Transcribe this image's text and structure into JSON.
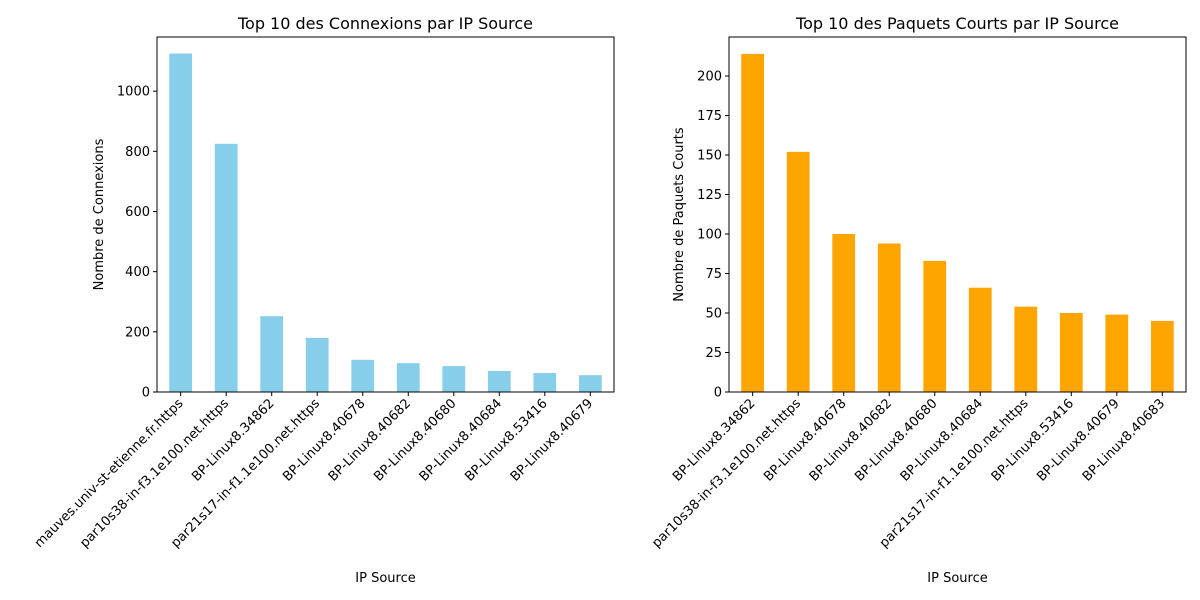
{
  "chart_data": [
    {
      "type": "bar",
      "title": "Top 10 des Connexions par IP Source",
      "xlabel": "IP Source",
      "ylabel": "Nombre de Connexions",
      "categories": [
        "mauves.univ-st-etienne.fr.https",
        "par10s38-in-f3.1e100.net.https",
        "BP-Linux8.34862",
        "par21s17-in-f1.1e100.net.https",
        "BP-Linux8.40678",
        "BP-Linux8.40682",
        "BP-Linux8.40680",
        "BP-Linux8.40684",
        "BP-Linux8.53416",
        "BP-Linux8.40679"
      ],
      "values": [
        1125,
        825,
        252,
        180,
        107,
        96,
        86,
        70,
        63,
        56
      ],
      "ylim": [
        0,
        1180
      ],
      "yticks": [
        0,
        200,
        400,
        600,
        800,
        1000
      ],
      "color": "#87ceeb",
      "grid": false
    },
    {
      "type": "bar",
      "title": "Top 10 des Paquets Courts par IP Source",
      "xlabel": "IP Source",
      "ylabel": "Nombre de Paquets Courts",
      "categories": [
        "BP-Linux8.34862",
        "par10s38-in-f3.1e100.net.https",
        "BP-Linux8.40678",
        "BP-Linux8.40682",
        "BP-Linux8.40680",
        "BP-Linux8.40684",
        "par21s17-in-f1.1e100.net.https",
        "BP-Linux8.53416",
        "BP-Linux8.40679",
        "BP-Linux8.40683"
      ],
      "values": [
        214,
        152,
        100,
        94,
        83,
        66,
        54,
        50,
        49,
        45
      ],
      "ylim": [
        0,
        224.7
      ],
      "yticks": [
        0,
        25,
        50,
        75,
        100,
        125,
        150,
        175,
        200
      ],
      "color": "#ffa500",
      "grid": false
    }
  ]
}
